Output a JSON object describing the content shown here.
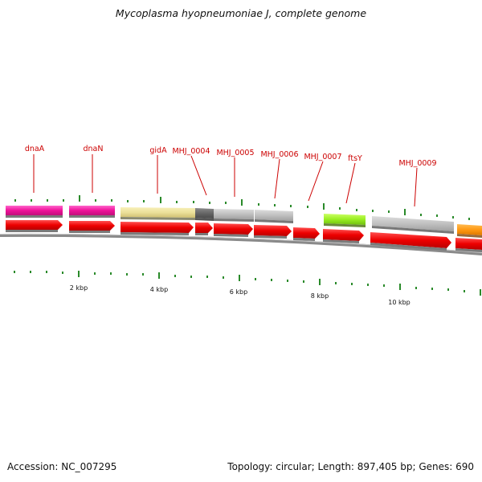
{
  "title": "Mycoplasma hyopneumoniae J, complete genome",
  "footer": {
    "accession": "Accession: NC_007295",
    "summary": "Topology: circular; Length: 897,405 bp; Genes: 690"
  },
  "colors": {
    "gene_arrow": "#ee0000",
    "label": "#cc0000",
    "tick": "#2a8a2a",
    "backbone": "#888888"
  },
  "gene_labels": [
    "dnaA",
    "dnaN",
    "gidA",
    "MHJ_0004",
    "MHJ_0005",
    "MHJ_0006",
    "MHJ_0007",
    "ftsY",
    "MHJ_0009"
  ],
  "scale_labels": [
    "2 kbp",
    "4 kbp",
    "6 kbp",
    "8 kbp",
    "10 kbp"
  ]
}
